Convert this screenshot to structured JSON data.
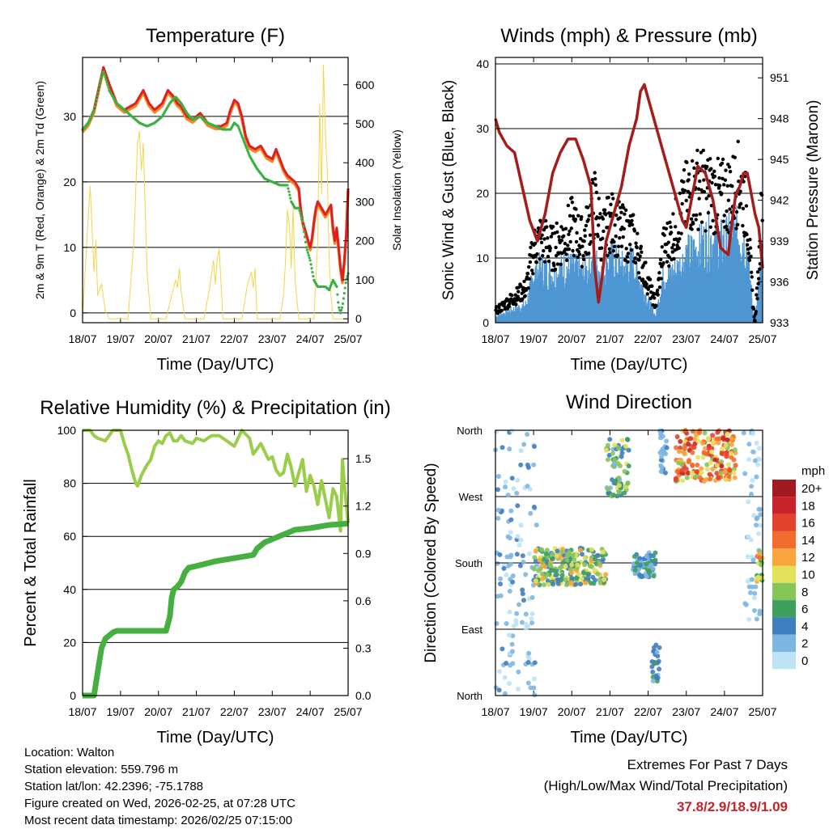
{
  "chart_data": [
    {
      "type": "line",
      "title": "Temperature (F)",
      "xlabel": "Time (Day/UTC)",
      "ylabel": "2m & 9m T (Red, Orange) & 2m Td (Green)",
      "y2label": "Solar Insolation (Yellow)",
      "ylim": [
        -1.5,
        39
      ],
      "y2lim": [
        -10,
        670
      ],
      "yticks": [
        0,
        10,
        20,
        30
      ],
      "y2ticks": [
        0,
        100,
        200,
        300,
        400,
        500,
        600
      ],
      "xticks": [
        "18/07",
        "19/07",
        "20/07",
        "21/07",
        "22/07",
        "23/07",
        "24/07",
        "25/07"
      ],
      "gridlines": [
        0,
        10,
        20,
        30
      ],
      "colors": {
        "temp_2m": "#e02020",
        "temp_9m": "#f08a24",
        "dewpoint": "#3cb043",
        "solar": "#f5d547"
      },
      "series": [
        {
          "name": "2m T",
          "x": [
            0,
            0.15,
            0.3,
            0.45,
            0.55,
            0.7,
            0.9,
            1.1,
            1.4,
            1.6,
            1.75,
            1.9,
            2.1,
            2.25,
            2.4,
            2.5,
            2.6,
            2.75,
            2.9,
            3.1,
            3.3,
            3.5,
            3.65,
            3.8,
            3.9,
            4.0,
            4.1,
            4.2,
            4.3,
            4.4,
            4.55,
            4.7,
            4.85,
            5.0,
            5.1,
            5.2,
            5.3,
            5.4,
            5.5,
            5.6,
            5.7,
            5.75,
            5.8,
            5.9,
            6.0,
            6.05,
            6.1,
            6.15,
            6.2,
            6.3,
            6.4,
            6.5,
            6.55,
            6.6,
            6.65,
            6.7,
            6.75,
            6.8,
            6.85,
            6.9,
            6.95,
            7.0
          ],
          "values": [
            28,
            29,
            31,
            35,
            37.5,
            35,
            32,
            31,
            32,
            34,
            32,
            31,
            32,
            34,
            33,
            32,
            31.5,
            30,
            29.5,
            30.5,
            29,
            28.5,
            28.5,
            29,
            31,
            32.5,
            32,
            30,
            27,
            25.5,
            25,
            25.5,
            24,
            23.5,
            25,
            23.5,
            22,
            21,
            20.5,
            20,
            19,
            16,
            14,
            12,
            10,
            11.5,
            14,
            16,
            17,
            16,
            15,
            16,
            16.5,
            13,
            11,
            13,
            10,
            7,
            5,
            8,
            12,
            19
          ]
        },
        {
          "name": "2m Td",
          "x": [
            0,
            0.15,
            0.3,
            0.45,
            0.55,
            0.7,
            0.9,
            1.1,
            1.3,
            1.5,
            1.7,
            1.9,
            2.1,
            2.3,
            2.45,
            2.6,
            2.75,
            2.9,
            3.1,
            3.3,
            3.5,
            3.7,
            3.9,
            4.0,
            4.1,
            4.2,
            4.4,
            4.6,
            4.8,
            5.0,
            5.2,
            5.4,
            5.5,
            5.6,
            5.7,
            5.8,
            5.9,
            6.0,
            6.1,
            6.2,
            6.3,
            6.4,
            6.5,
            6.6,
            6.7,
            6.75,
            6.8,
            6.85,
            6.9,
            6.95,
            7.0
          ],
          "values": [
            28,
            29,
            31,
            35,
            37,
            34,
            32,
            31,
            30,
            29,
            28.5,
            29,
            30,
            32,
            33,
            32,
            30.5,
            29.5,
            30,
            29,
            28.5,
            28,
            28,
            29,
            28.5,
            27,
            24,
            22,
            20.5,
            20,
            19.5,
            19.5,
            17,
            16,
            16,
            14,
            10,
            8,
            5,
            4,
            4,
            4,
            3.5,
            5,
            4,
            1,
            0,
            1,
            3,
            5,
            6
          ]
        },
        {
          "name": "Solar Insolation",
          "x": [
            0,
            0.1,
            0.2,
            0.3,
            0.35,
            0.4,
            0.5,
            0.6,
            0.7,
            0.8,
            0.9,
            1.0,
            1.2,
            1.35,
            1.45,
            1.5,
            1.55,
            1.6,
            1.7,
            1.8,
            1.9,
            2.0,
            2.2,
            2.35,
            2.45,
            2.5,
            2.55,
            2.6,
            2.7,
            3.0,
            3.2,
            3.35,
            3.45,
            3.5,
            3.55,
            3.6,
            3.7,
            4.0,
            4.2,
            4.35,
            4.45,
            4.5,
            4.55,
            4.6,
            4.65,
            4.7,
            5.0,
            5.2,
            5.3,
            5.35,
            5.4,
            5.45,
            5.5,
            5.55,
            5.6,
            5.7,
            5.9,
            6.1,
            6.2,
            6.25,
            6.3,
            6.35,
            6.4,
            6.45,
            6.5,
            6.55,
            6.6,
            6.7,
            6.8,
            6.9,
            7.0
          ],
          "values": [
            0,
            180,
            340,
            120,
            200,
            60,
            90,
            20,
            0,
            0,
            0,
            0,
            0,
            200,
            450,
            480,
            380,
            450,
            120,
            0,
            0,
            0,
            0,
            60,
            100,
            80,
            130,
            70,
            0,
            0,
            0,
            80,
            150,
            90,
            150,
            180,
            0,
            0,
            0,
            90,
            120,
            80,
            130,
            0,
            0,
            0,
            0,
            0,
            60,
            150,
            280,
            240,
            130,
            290,
            100,
            0,
            0,
            0,
            200,
            550,
            320,
            650,
            480,
            380,
            150,
            60,
            0,
            0,
            0,
            0,
            0
          ]
        }
      ]
    },
    {
      "type": "line",
      "title": "Winds (mph) & Pressure (mb)",
      "xlabel": "Time (Day/UTC)",
      "ylabel": "Sonic Wind & Gust (Blue, Black)",
      "y2label": "Station Pressure (Maroon)",
      "ylim": [
        0,
        41
      ],
      "y2lim": [
        933,
        952.5
      ],
      "yticks": [
        0,
        10,
        20,
        30,
        40
      ],
      "y2ticks": [
        933,
        936,
        939,
        942,
        945,
        948,
        951
      ],
      "xticks": [
        "18/07",
        "19/07",
        "20/07",
        "21/07",
        "22/07",
        "23/07",
        "24/07",
        "25/07"
      ],
      "gridlines": [
        10,
        20,
        30,
        40
      ],
      "colors": {
        "wind": "#4f97d3",
        "gust": "#000000",
        "pressure": "#a41c1c"
      },
      "series": [
        {
          "name": "Wind",
          "x": [
            0,
            0.4,
            0.8,
            1.0,
            1.2,
            1.5,
            1.8,
            2.0,
            2.3,
            2.6,
            2.8,
            3.0,
            3.3,
            3.6,
            3.9,
            4.2,
            4.4,
            4.6,
            4.8,
            5.0,
            5.3,
            5.6,
            5.9,
            6.2,
            6.4,
            6.6,
            6.75,
            6.8,
            6.9,
            7.0
          ],
          "values": [
            1,
            2,
            3,
            8,
            9,
            8,
            9,
            9,
            8,
            10,
            8,
            11,
            9,
            10,
            5,
            1,
            8,
            8,
            9,
            11,
            12,
            14,
            13,
            14,
            15,
            12,
            2,
            0,
            6,
            12
          ]
        },
        {
          "name": "Gust",
          "x": [
            0,
            0.4,
            0.8,
            1.0,
            1.2,
            1.5,
            1.8,
            2.0,
            2.3,
            2.6,
            2.8,
            3.0,
            3.3,
            3.6,
            3.9,
            4.2,
            4.4,
            4.6,
            4.8,
            5.0,
            5.3,
            5.6,
            5.9,
            6.2,
            6.4,
            6.6,
            6.75,
            6.8,
            6.9,
            7.0
          ],
          "values": [
            2,
            4,
            6,
            13,
            15,
            13,
            15,
            17,
            14,
            21,
            15,
            18,
            16,
            15,
            9,
            3,
            13,
            15,
            18,
            22,
            24,
            23,
            22,
            23,
            25,
            19,
            3,
            0,
            10,
            24
          ]
        },
        {
          "name": "Station Pressure",
          "x": [
            0,
            0.1,
            0.3,
            0.5,
            0.7,
            0.9,
            1.1,
            1.3,
            1.5,
            1.7,
            1.9,
            2.1,
            2.3,
            2.5,
            2.6,
            2.7,
            2.8,
            2.9,
            3.1,
            3.3,
            3.5,
            3.7,
            3.8,
            3.9,
            4.0,
            4.2,
            4.4,
            4.6,
            4.8,
            4.9,
            5.0,
            5.1,
            5.3,
            5.5,
            5.7,
            5.9,
            6.1,
            6.2,
            6.3,
            6.4,
            6.5,
            6.6,
            6.7,
            6.8,
            6.9,
            7.0
          ],
          "values": [
            948,
            947,
            946,
            945.5,
            943,
            940.5,
            939,
            941,
            944,
            945.5,
            946.5,
            946.5,
            945,
            943,
            937,
            934.5,
            936.5,
            939,
            941,
            943,
            946,
            948,
            950,
            950.5,
            949.5,
            947.5,
            945.5,
            943.5,
            941.5,
            940.5,
            940,
            941.5,
            944.5,
            944,
            942,
            938.5,
            938,
            940.5,
            942.5,
            943,
            944,
            944,
            942.5,
            941,
            940,
            937
          ]
        }
      ]
    },
    {
      "type": "line",
      "title": "Relative Humidity (%) & Precipitation (in)",
      "xlabel": "Time (Day/UTC)",
      "ylabel": "Percent & Total Rainfall",
      "ylim": [
        0,
        100
      ],
      "y2lim": [
        0,
        1.68
      ],
      "yticks": [
        0,
        20,
        40,
        60,
        80,
        100
      ],
      "y2ticks": [
        "0.0",
        "0.3",
        "0.6",
        "0.9",
        "1.2",
        "1.5"
      ],
      "xticks": [
        "18/07",
        "19/07",
        "20/07",
        "21/07",
        "22/07",
        "23/07",
        "24/07",
        "25/07"
      ],
      "gridlines": [
        20,
        40,
        60,
        80
      ],
      "colors": {
        "rh": "#9acd4a",
        "precip": "#45b040"
      },
      "series": [
        {
          "name": "Relative Humidity",
          "x": [
            0,
            0.1,
            0.2,
            0.3,
            0.4,
            0.6,
            0.8,
            1.0,
            1.1,
            1.2,
            1.3,
            1.4,
            1.45,
            1.55,
            1.7,
            1.8,
            1.9,
            2.0,
            2.1,
            2.2,
            2.3,
            2.4,
            2.5,
            2.6,
            2.7,
            2.9,
            3.0,
            3.2,
            3.4,
            3.6,
            3.8,
            4.0,
            4.2,
            4.4,
            4.5,
            4.6,
            4.7,
            4.8,
            4.9,
            5.0,
            5.1,
            5.2,
            5.3,
            5.4,
            5.5,
            5.6,
            5.7,
            5.8,
            5.9,
            6.0,
            6.1,
            6.2,
            6.3,
            6.4,
            6.5,
            6.6,
            6.7,
            6.8,
            6.85,
            6.9,
            7.0
          ],
          "values": [
            100,
            100,
            100,
            98,
            97,
            96,
            100,
            100,
            95,
            91,
            85,
            80,
            79,
            83,
            87,
            89,
            94,
            96,
            95,
            98,
            99,
            96,
            96,
            98,
            96,
            95,
            97,
            96,
            98,
            98,
            96,
            94,
            100,
            97,
            91,
            93,
            95,
            92,
            89,
            90,
            85,
            83,
            84,
            91,
            86,
            79,
            84,
            89,
            77,
            83,
            79,
            72,
            81,
            74,
            67,
            78,
            75,
            62,
            89,
            80,
            65
          ]
        },
        {
          "name": "Total Precipitation",
          "x": [
            0,
            0.3,
            0.4,
            0.5,
            0.6,
            0.7,
            0.8,
            0.9,
            1.0,
            1.5,
            2.0,
            2.2,
            2.3,
            2.35,
            2.4,
            2.5,
            2.6,
            2.7,
            2.8,
            3.0,
            3.5,
            4.0,
            4.5,
            4.6,
            4.7,
            4.8,
            5.0,
            5.3,
            5.5,
            5.6,
            6.0,
            6.5,
            7.0
          ],
          "values": [
            0.0,
            0.0,
            0.15,
            0.3,
            0.36,
            0.38,
            0.4,
            0.41,
            0.41,
            0.41,
            0.41,
            0.41,
            0.5,
            0.62,
            0.67,
            0.69,
            0.72,
            0.78,
            0.81,
            0.82,
            0.85,
            0.87,
            0.89,
            0.93,
            0.95,
            0.97,
            0.99,
            1.02,
            1.04,
            1.05,
            1.06,
            1.08,
            1.09
          ]
        }
      ]
    },
    {
      "type": "scatter",
      "title": "Wind Direction",
      "xlabel": "Time (Day/UTC)",
      "ylabel": "Direction (Colored By Speed)",
      "yticks": [
        "North",
        "East",
        "South",
        "West",
        "North"
      ],
      "ylim": [
        0,
        360
      ],
      "xticks": [
        "18/07",
        "19/07",
        "20/07",
        "21/07",
        "22/07",
        "23/07",
        "24/07",
        "25/07"
      ],
      "gridlines": [
        90,
        180,
        270
      ],
      "colorbar": {
        "title": "mph",
        "labels": [
          "20+",
          "18",
          "16",
          "14",
          "12",
          "10",
          "8",
          "6",
          "4",
          "2",
          "0"
        ],
        "colors": [
          "#a11a1f",
          "#c8222a",
          "#e3422e",
          "#f26c2d",
          "#f9a43d",
          "#e3e15a",
          "#85c55a",
          "#3e9f5e",
          "#3f7fc0",
          "#7eb6e2",
          "#bde3f5"
        ]
      },
      "clusters": [
        {
          "x0": 0.0,
          "x1": 1.1,
          "d0": 0,
          "d1": 360,
          "s0": 0,
          "s1": 4
        },
        {
          "x0": 1.0,
          "x1": 2.9,
          "d0": 150,
          "d1": 200,
          "s0": 3,
          "s1": 12
        },
        {
          "x0": 2.9,
          "x1": 3.5,
          "d0": 270,
          "d1": 350,
          "s0": 2,
          "s1": 10
        },
        {
          "x0": 3.6,
          "x1": 4.2,
          "d0": 160,
          "d1": 195,
          "s0": 1,
          "s1": 6
        },
        {
          "x0": 4.1,
          "x1": 4.3,
          "d0": 15,
          "d1": 70,
          "s0": 2,
          "s1": 6
        },
        {
          "x0": 4.3,
          "x1": 4.5,
          "d0": 300,
          "d1": 360,
          "s0": 1,
          "s1": 4
        },
        {
          "x0": 4.7,
          "x1": 6.3,
          "d0": 290,
          "d1": 360,
          "s0": 8,
          "s1": 18
        },
        {
          "x0": 6.5,
          "x1": 6.95,
          "d0": 100,
          "d1": 360,
          "s0": 0,
          "s1": 3
        },
        {
          "x0": 6.85,
          "x1": 7.0,
          "d0": 150,
          "d1": 200,
          "s0": 4,
          "s1": 14
        }
      ]
    }
  ],
  "info": {
    "location": "Location: Walton",
    "elevation": "Station elevation: 559.796 m",
    "latlon": "Station lat/lon: 42.2396; -75.1788",
    "created": "Figure created on Wed, 2026-02-25, at 07:28 UTC",
    "recent": "Most recent data timestamp: 2026/02/25 07:15:00"
  },
  "extremes": {
    "title": "Extremes For Past 7 Days",
    "subtitle": "(High/Low/Max Wind/Total Precipitation)",
    "values": "37.8/2.9/18.9/1.09",
    "color": "#c0252b"
  }
}
